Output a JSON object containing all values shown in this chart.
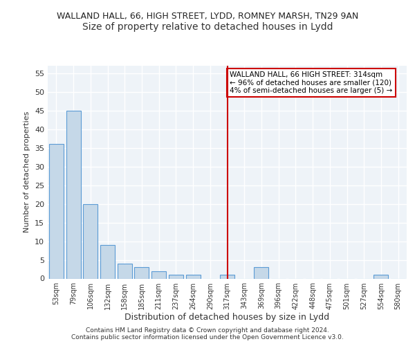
{
  "title1": "WALLAND HALL, 66, HIGH STREET, LYDD, ROMNEY MARSH, TN29 9AN",
  "title2": "Size of property relative to detached houses in Lydd",
  "xlabel": "Distribution of detached houses by size in Lydd",
  "ylabel": "Number of detached properties",
  "categories": [
    "53sqm",
    "79sqm",
    "106sqm",
    "132sqm",
    "158sqm",
    "185sqm",
    "211sqm",
    "237sqm",
    "264sqm",
    "290sqm",
    "317sqm",
    "343sqm",
    "369sqm",
    "396sqm",
    "422sqm",
    "448sqm",
    "475sqm",
    "501sqm",
    "527sqm",
    "554sqm",
    "580sqm"
  ],
  "values": [
    36,
    45,
    20,
    9,
    4,
    3,
    2,
    1,
    1,
    0,
    1,
    0,
    3,
    0,
    0,
    0,
    0,
    0,
    0,
    1,
    0
  ],
  "bar_color": "#c5d8e8",
  "bar_edge_color": "#5b9bd5",
  "vline_x": 10,
  "vline_color": "#cc0000",
  "annotation_text": "WALLAND HALL, 66 HIGH STREET: 314sqm\n← 96% of detached houses are smaller (120)\n4% of semi-detached houses are larger (5) →",
  "annotation_box_color": "#ffffff",
  "annotation_box_edge_color": "#cc0000",
  "ylim": [
    0,
    57
  ],
  "yticks": [
    0,
    5,
    10,
    15,
    20,
    25,
    30,
    35,
    40,
    45,
    50,
    55
  ],
  "footer": "Contains HM Land Registry data © Crown copyright and database right 2024.\nContains public sector information licensed under the Open Government Licence v3.0.",
  "bg_color": "#eef3f8",
  "grid_color": "#ffffff",
  "title1_fontsize": 9,
  "title2_fontsize": 10
}
